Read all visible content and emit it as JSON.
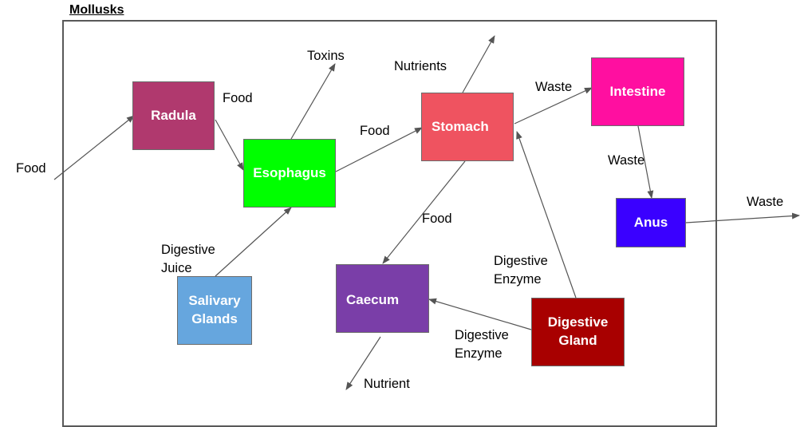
{
  "diagram": {
    "title": "Mollusks",
    "nodes": {
      "radula": {
        "label": "Radula",
        "color": "#b0396e"
      },
      "esophagus": {
        "label": "Esophagus",
        "color": "#00ff00"
      },
      "stomach": {
        "label": "Stomach",
        "color": "#ef5360"
      },
      "intestine": {
        "label": "Intestine",
        "color": "#ff0fa0"
      },
      "anus": {
        "label": "Anus",
        "color": "#3a00ff"
      },
      "salivary_glands": {
        "label": "Salivary Glands",
        "color": "#66a6de"
      },
      "caecum": {
        "label": "Caecum",
        "color": "#7a3ea8"
      },
      "digestive_gland": {
        "label": "Digestive Gland",
        "color": "#a80000"
      }
    },
    "edge_labels": {
      "food_in": "Food",
      "food_radula_esophagus": "Food",
      "toxins": "Toxins",
      "food_esophagus_stomach": "Food",
      "nutrients": "Nutrients",
      "waste_stomach_intestine": "Waste",
      "waste_intestine_anus": "Waste",
      "waste_out": "Waste",
      "food_stomach_caecum": "Food",
      "digestive_juice": "Digestive Juice",
      "digestive_enzyme_to_stomach": "Digestive Enzyme",
      "digestive_enzyme_to_caecum": "Digestive Enzyme",
      "nutrient_out": "Nutrient"
    }
  }
}
